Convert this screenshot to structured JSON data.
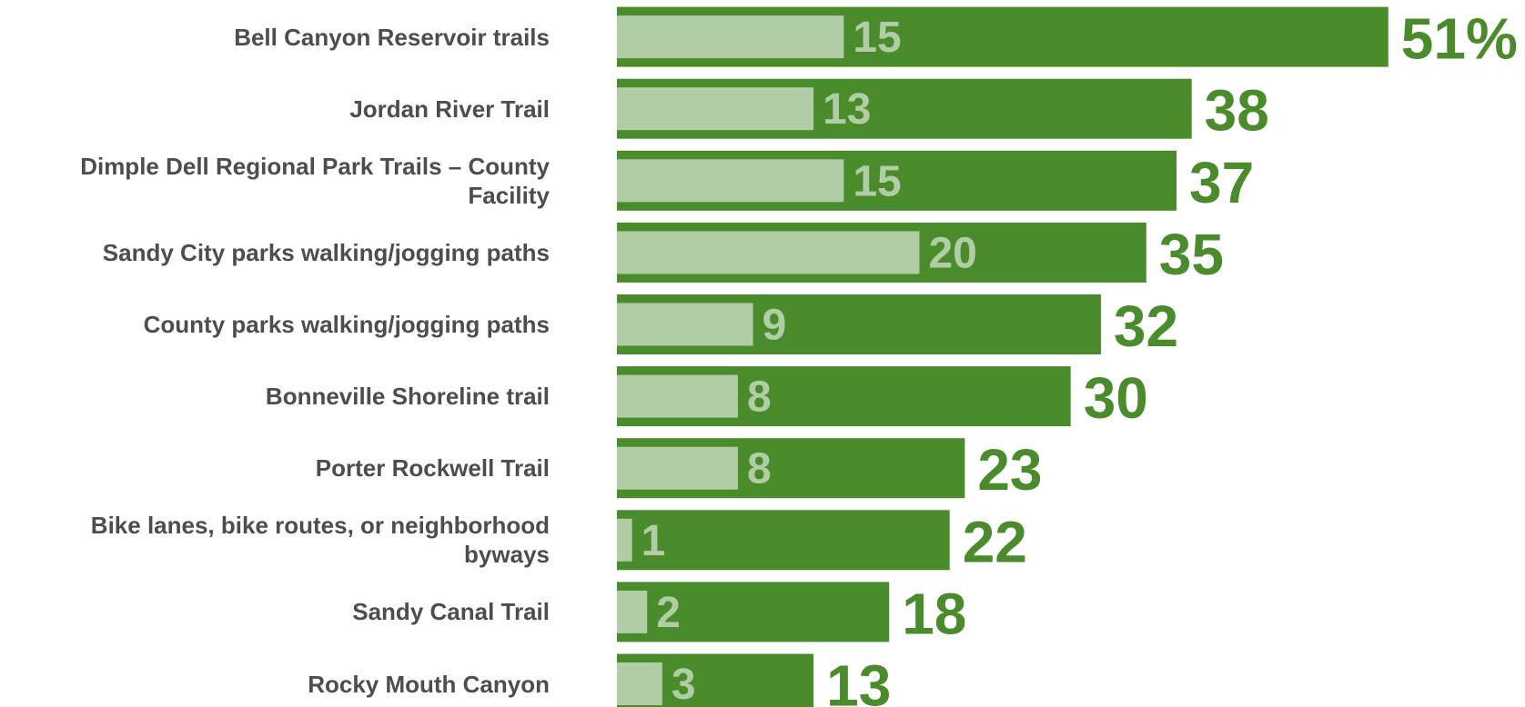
{
  "chart_data": {
    "type": "bar",
    "orientation": "horizontal",
    "categories": [
      "Bell Canyon Reservoir trails",
      "Jordan River Trail",
      "Dimple Dell Regional Park Trails – County Facility",
      "Sandy City parks walking/jogging paths",
      "County parks walking/jogging paths",
      "Bonneville Shoreline trail",
      "Porter Rockwell Trail",
      "Bike lanes, bike routes, or neighborhood byways",
      "Sandy Canal Trail",
      "Rocky Mouth Canyon"
    ],
    "series": [
      {
        "color": "#4a8b2c",
        "values": [
          51,
          38,
          37,
          35,
          32,
          30,
          23,
          22,
          18,
          13
        ],
        "value_labels": [
          "51%",
          "38",
          "37",
          "35",
          "32",
          "30",
          "23",
          "22",
          "18",
          "13"
        ]
      },
      {
        "color": "#b1cda5",
        "values": [
          15,
          13,
          15,
          20,
          9,
          8,
          8,
          1,
          2,
          3
        ]
      }
    ]
  }
}
